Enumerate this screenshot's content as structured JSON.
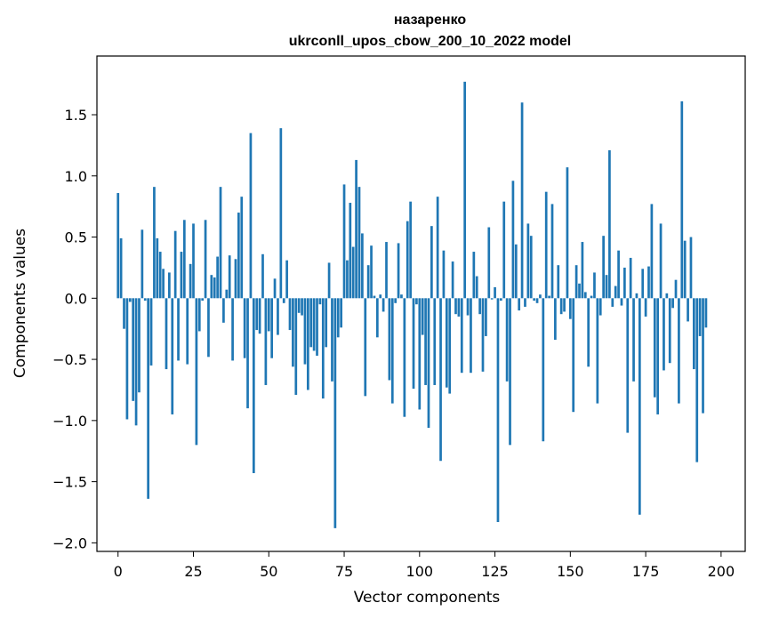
{
  "chart_data": {
    "type": "bar",
    "title": "назаренко",
    "subtitle": "ukrconll_upos_cbow_200_10_2022 model",
    "xlabel": "Vector components",
    "ylabel": "Components values",
    "xlim": [
      -7,
      208
    ],
    "ylim": [
      -2.07,
      1.98
    ],
    "xticks": [
      0,
      25,
      50,
      75,
      100,
      125,
      150,
      175,
      200
    ],
    "yticks": [
      -2.0,
      -1.5,
      -1.0,
      -0.5,
      0.0,
      0.5,
      1.0,
      1.5
    ],
    "ytick_labels": [
      "−2.0",
      "−1.5",
      "−1.0",
      "−0.5",
      "0.0",
      "0.5",
      "1.0",
      "1.5"
    ],
    "grid": false,
    "bar_color": "#1f77b4",
    "values": [
      0.86,
      0.49,
      -0.25,
      -0.99,
      -0.03,
      -0.84,
      -1.04,
      -0.77,
      0.56,
      -0.02,
      -1.64,
      -0.55,
      0.91,
      0.49,
      0.38,
      0.24,
      -0.58,
      0.21,
      -0.95,
      0.55,
      -0.51,
      0.38,
      0.64,
      -0.54,
      0.28,
      0.61,
      -1.2,
      -0.27,
      -0.02,
      0.64,
      -0.48,
      0.19,
      0.17,
      0.34,
      0.91,
      -0.2,
      0.07,
      0.35,
      -0.51,
      0.32,
      0.7,
      0.83,
      -0.49,
      -0.9,
      1.35,
      -1.43,
      -0.26,
      -0.29,
      0.36,
      -0.71,
      -0.27,
      -0.49,
      0.16,
      -0.3,
      1.39,
      -0.04,
      0.31,
      -0.26,
      -0.56,
      -0.79,
      -0.12,
      -0.14,
      -0.54,
      -0.75,
      -0.4,
      -0.43,
      -0.47,
      -0.05,
      -0.82,
      -0.4,
      0.29,
      -0.68,
      -1.88,
      -0.32,
      -0.24,
      0.93,
      0.31,
      0.78,
      0.42,
      1.13,
      0.91,
      0.53,
      -0.8,
      0.27,
      0.43,
      0.02,
      -0.32,
      0.03,
      -0.11,
      0.46,
      -0.67,
      -0.86,
      -0.04,
      0.45,
      0.03,
      -0.97,
      0.63,
      0.79,
      -0.74,
      -0.05,
      -0.91,
      -0.3,
      -0.71,
      -1.06,
      0.59,
      -0.71,
      0.83,
      -1.33,
      0.39,
      -0.73,
      -0.78,
      0.3,
      -0.13,
      -0.15,
      -0.61,
      1.77,
      -0.14,
      -0.61,
      0.38,
      0.18,
      -0.13,
      -0.6,
      -0.31,
      0.58,
      -0.01,
      0.09,
      -1.83,
      -0.02,
      0.79,
      -0.68,
      -1.2,
      0.96,
      0.44,
      -0.1,
      1.6,
      -0.07,
      0.61,
      0.51,
      -0.02,
      -0.04,
      0.03,
      -1.17,
      0.87,
      0.02,
      0.77,
      -0.34,
      0.27,
      -0.13,
      -0.11,
      1.07,
      -0.17,
      -0.93,
      0.27,
      0.12,
      0.46,
      0.05,
      -0.56,
      0.02,
      0.21,
      -0.86,
      -0.14,
      0.51,
      0.19,
      1.21,
      -0.07,
      0.1,
      0.39,
      -0.06,
      0.25,
      -1.1,
      0.33,
      -0.68,
      0.04,
      -1.77,
      0.24,
      -0.15,
      0.26,
      0.77,
      -0.81,
      -0.95,
      0.61,
      -0.59,
      0.04,
      -0.53,
      -0.08,
      0.15,
      -0.86,
      1.61,
      0.47,
      -0.19,
      0.5,
      -0.58,
      -1.34,
      -0.31,
      -0.94,
      -0.24
    ]
  }
}
